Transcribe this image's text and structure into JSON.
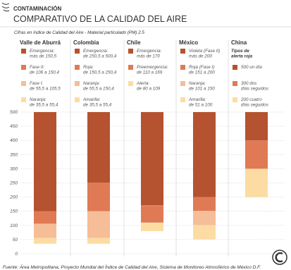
{
  "chart_data": {
    "type": "bar",
    "section": "CONTAMINACIÓN",
    "title": "COMPARATIVO DE LA CALIDAD DEL AIRE",
    "subtitle": "Cifras en índice de Calidad del Aire - Material particulado (PM) 2.5",
    "source": "Fuente: Área Metropolitana, Proyecto Mundial del Índice de Calidad del Aire, Sistema de Monitoreo Atmosférico de México D.F.",
    "ylim": [
      0,
      500
    ],
    "yticks": [
      0,
      50,
      100,
      150,
      200,
      250,
      300,
      350,
      400,
      450,
      500
    ],
    "grid": true,
    "groups": [
      {
        "name": "Valle de Aburrá",
        "segments": [
          {
            "label": [
              "Emergencia:",
              "más de 150,5"
            ],
            "color": "#b5522f",
            "range": [
              150.5,
              500
            ]
          },
          {
            "label": [
              "Fase II:",
              "de 106 a 150,4"
            ],
            "color": "#df7a55",
            "range": [
              106,
              150.4
            ]
          },
          {
            "label": [
              "Fase I:",
              "de 55,5 a 105,5"
            ],
            "color": "#f5bd98",
            "range": [
              55.5,
              105.5
            ]
          },
          {
            "label": [
              "Naranja:",
              "de 35,5 a 55,4"
            ],
            "color": "#fcdca2",
            "range": [
              35.5,
              55.4
            ]
          }
        ]
      },
      {
        "name": "Colombia",
        "segments": [
          {
            "label": [
              "Emergencia:",
              "de 250,5 a 500,4"
            ],
            "color": "#b5522f",
            "range": [
              250.5,
              500
            ]
          },
          {
            "label": [
              "Roja:",
              "de 150,5 a 250,4"
            ],
            "color": "#df7a55",
            "range": [
              150.5,
              250.4
            ]
          },
          {
            "label": [
              "Naranja:",
              "de 55,5 a 150,4"
            ],
            "color": "#f5bd98",
            "range": [
              55.5,
              150.4
            ]
          },
          {
            "label": [
              "Amarilla:",
              "de 35,5 a 55,4"
            ],
            "color": "#fcdca2",
            "range": [
              35.5,
              55.4
            ]
          }
        ]
      },
      {
        "name": "Chile",
        "segments": [
          {
            "label": [
              "Emergencia:",
              "más de 170"
            ],
            "color": "#b5522f",
            "range": [
              170,
              500
            ]
          },
          {
            "label": [
              "Preemergencia:",
              "de 110 a 169"
            ],
            "color": "#df7a55",
            "range": [
              110,
              169
            ]
          },
          {
            "label": [
              "Alerta:",
              "de 80 a 109"
            ],
            "color": "#fcdca2",
            "range": [
              80,
              109
            ]
          }
        ]
      },
      {
        "name": "México",
        "segments": [
          {
            "label": [
              "Violeta (Fase II)",
              "más de 200"
            ],
            "color": "#b5522f",
            "range": [
              200,
              500
            ]
          },
          {
            "label": [
              "Roja (Fase I)",
              "de 151 a 200"
            ],
            "color": "#df7a55",
            "range": [
              151,
              200
            ]
          },
          {
            "label": [
              "Naranja:",
              "de 101 a 150"
            ],
            "color": "#f5bd98",
            "range": [
              101,
              150
            ]
          },
          {
            "label": [
              "Amarilla:",
              "de 51 a 100"
            ],
            "color": "#fcdca2",
            "range": [
              51,
              100
            ]
          }
        ]
      },
      {
        "name": "China",
        "legend_title": [
          "Tipos de",
          "alerta roja"
        ],
        "segments": [
          {
            "label": [
              "500 un día"
            ],
            "color": "#b5522f",
            "range": [
              400,
              500
            ]
          },
          {
            "label": [
              "300 dos",
              "días seguidos"
            ],
            "color": "#df7a55",
            "range": [
              300,
              400
            ]
          },
          {
            "label": [
              "200 cuatro",
              "días seguidos"
            ],
            "color": "#fcdca2",
            "range": [
              200,
              300
            ]
          }
        ]
      }
    ]
  }
}
